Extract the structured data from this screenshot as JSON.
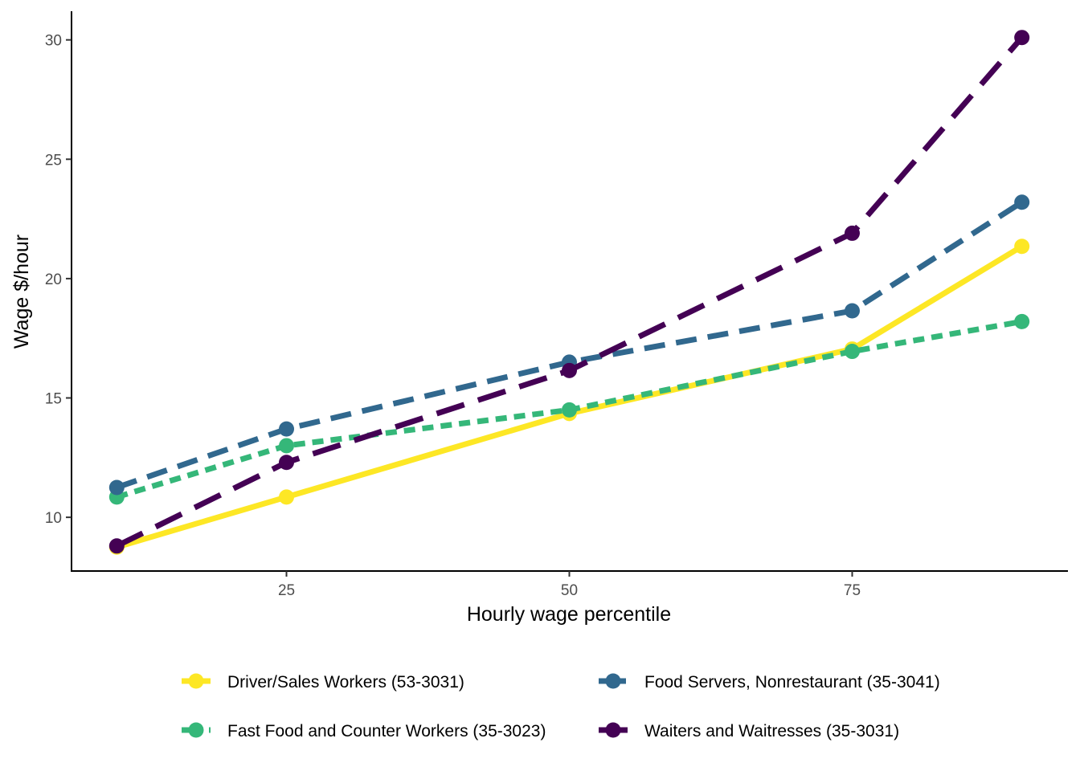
{
  "chart_data": {
    "type": "line",
    "xlabel": "Hourly wage percentile",
    "ylabel": "Wage $/hour",
    "x": [
      10,
      25,
      50,
      75,
      90
    ],
    "xticks": [
      25,
      50,
      75
    ],
    "yticks": [
      10,
      15,
      20,
      25,
      30
    ],
    "xlim": [
      6,
      94
    ],
    "ylim": [
      7.75,
      31.2
    ],
    "grid": false,
    "legend_position": "bottom",
    "series": [
      {
        "name": "Driver/Sales Workers (53-3031)",
        "color": "#FDE725",
        "line": "solid",
        "values": [
          8.75,
          10.85,
          14.35,
          17.05,
          21.35
        ]
      },
      {
        "name": "Fast Food and Counter Workers (35-3023)",
        "color": "#35B779",
        "line": "dotted",
        "values": [
          10.85,
          13.0,
          14.5,
          16.95,
          18.2
        ]
      },
      {
        "name": "Food Servers, Nonrestaurant (35-3041)",
        "color": "#31688E",
        "line": "dashed",
        "values": [
          11.25,
          13.7,
          16.5,
          18.65,
          23.2
        ]
      },
      {
        "name": "Waiters and Waitresses (35-3031)",
        "color": "#440154",
        "line": "longdash",
        "values": [
          8.8,
          12.3,
          16.15,
          21.9,
          30.1
        ]
      }
    ]
  }
}
